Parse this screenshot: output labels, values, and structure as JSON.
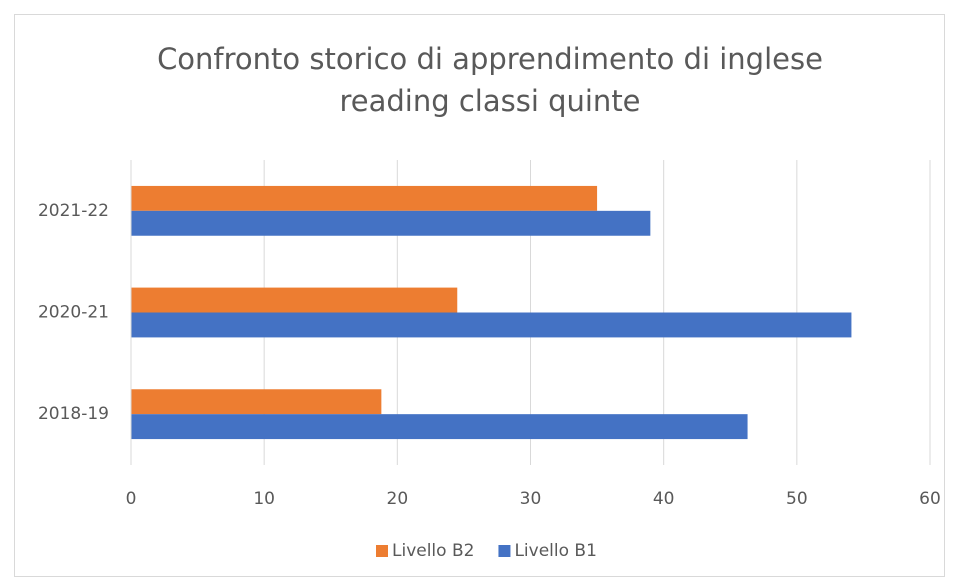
{
  "chart_data": {
    "type": "barh",
    "title": "Confronto storico di apprendimento di inglese reading classi quinte",
    "categories": [
      "2018-19",
      "2020-21",
      "2021-22"
    ],
    "series": [
      {
        "name": "Livello B2",
        "color": "#ed7d31",
        "values": [
          18.8,
          24.5,
          35.0
        ]
      },
      {
        "name": "Livello B1",
        "color": "#4472c4",
        "values": [
          46.3,
          54.1,
          39.0
        ]
      }
    ],
    "xlim": [
      0,
      60
    ],
    "xticks": [
      0,
      10,
      20,
      30,
      40,
      50,
      60
    ],
    "grid": true,
    "legend": "bottom"
  }
}
